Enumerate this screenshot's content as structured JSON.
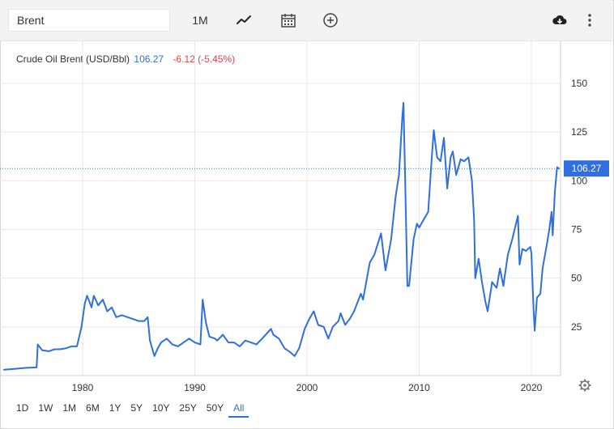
{
  "toolbar": {
    "search_value": "Brent",
    "interval_label": "1M",
    "icons": [
      "line-chart-icon",
      "calendar-icon",
      "add-circle-icon",
      "download-icon",
      "more-vertical-icon"
    ]
  },
  "legend": {
    "name": "Crude Oil Brent (USD/Bbl)",
    "price": "106.27",
    "change": "-6.12 (-5.45%)"
  },
  "colors": {
    "line": "#2f6fde",
    "badge": "#2f6fde",
    "change": "#e0454a",
    "grid": "#e8e8e8"
  },
  "ranges": [
    "1D",
    "1W",
    "1M",
    "6M",
    "1Y",
    "5Y",
    "10Y",
    "25Y",
    "50Y",
    "All"
  ],
  "active_range": "All",
  "chart_data": {
    "type": "line",
    "title": "",
    "xlabel": "",
    "ylabel": "",
    "xlim": [
      1973,
      2022.6
    ],
    "ylim": [
      0,
      150
    ],
    "x_ticks": [
      1980,
      1990,
      2000,
      2010,
      2020
    ],
    "y_ticks": [
      25,
      50,
      75,
      100,
      125,
      150
    ],
    "grid": true,
    "current_value": 106.27,
    "current_label": "106.27",
    "series": [
      {
        "name": "Crude Oil Brent (USD/Bbl)",
        "points": [
          [
            1973.0,
            3
          ],
          [
            1974.0,
            3.5
          ],
          [
            1975.0,
            4
          ],
          [
            1975.9,
            4.2
          ],
          [
            1976.0,
            16
          ],
          [
            1976.4,
            13
          ],
          [
            1977.0,
            12.5
          ],
          [
            1977.5,
            13.5
          ],
          [
            1978.0,
            13.5
          ],
          [
            1978.5,
            14
          ],
          [
            1979.0,
            15
          ],
          [
            1979.5,
            15
          ],
          [
            1979.9,
            25
          ],
          [
            1980.2,
            37
          ],
          [
            1980.4,
            41
          ],
          [
            1980.6,
            38
          ],
          [
            1980.8,
            35
          ],
          [
            1981.0,
            41
          ],
          [
            1981.4,
            36
          ],
          [
            1981.8,
            39
          ],
          [
            1982.2,
            33
          ],
          [
            1982.6,
            35
          ],
          [
            1983.0,
            30
          ],
          [
            1983.5,
            31
          ],
          [
            1984.0,
            30
          ],
          [
            1984.5,
            29
          ],
          [
            1985.0,
            28
          ],
          [
            1985.5,
            28
          ],
          [
            1985.8,
            30
          ],
          [
            1986.0,
            18
          ],
          [
            1986.4,
            10
          ],
          [
            1986.7,
            14
          ],
          [
            1987.0,
            17
          ],
          [
            1987.5,
            19
          ],
          [
            1988.0,
            16
          ],
          [
            1988.5,
            15
          ],
          [
            1989.0,
            17
          ],
          [
            1989.5,
            19
          ],
          [
            1990.0,
            17
          ],
          [
            1990.5,
            16
          ],
          [
            1990.7,
            39
          ],
          [
            1991.0,
            27
          ],
          [
            1991.3,
            20
          ],
          [
            1991.8,
            19
          ],
          [
            1992.0,
            18
          ],
          [
            1992.5,
            21
          ],
          [
            1993.0,
            17
          ],
          [
            1993.5,
            17
          ],
          [
            1994.0,
            15
          ],
          [
            1994.5,
            18
          ],
          [
            1995.0,
            17
          ],
          [
            1995.5,
            16
          ],
          [
            1996.0,
            19
          ],
          [
            1996.8,
            24
          ],
          [
            1997.0,
            21
          ],
          [
            1997.5,
            19
          ],
          [
            1998.0,
            14
          ],
          [
            1998.5,
            12
          ],
          [
            1998.9,
            10
          ],
          [
            1999.3,
            14
          ],
          [
            1999.8,
            24
          ],
          [
            2000.2,
            29
          ],
          [
            2000.6,
            33
          ],
          [
            2001.0,
            26
          ],
          [
            2001.5,
            25
          ],
          [
            2001.9,
            19
          ],
          [
            2002.3,
            25
          ],
          [
            2002.8,
            28
          ],
          [
            2003.0,
            32
          ],
          [
            2003.4,
            26
          ],
          [
            2003.8,
            29
          ],
          [
            2004.2,
            33
          ],
          [
            2004.8,
            42
          ],
          [
            2005.0,
            39
          ],
          [
            2005.6,
            58
          ],
          [
            2006.0,
            62
          ],
          [
            2006.6,
            73
          ],
          [
            2007.0,
            54
          ],
          [
            2007.5,
            70
          ],
          [
            2007.9,
            92
          ],
          [
            2008.2,
            103
          ],
          [
            2008.5,
            133
          ],
          [
            2008.6,
            140
          ],
          [
            2008.75,
            100
          ],
          [
            2008.95,
            46
          ],
          [
            2009.1,
            46
          ],
          [
            2009.5,
            70
          ],
          [
            2009.8,
            78
          ],
          [
            2010.0,
            76
          ],
          [
            2010.4,
            80
          ],
          [
            2010.8,
            84
          ],
          [
            2011.1,
            110
          ],
          [
            2011.3,
            126
          ],
          [
            2011.6,
            112
          ],
          [
            2011.9,
            110
          ],
          [
            2012.2,
            122
          ],
          [
            2012.5,
            96
          ],
          [
            2012.8,
            112
          ],
          [
            2013.0,
            115
          ],
          [
            2013.3,
            103
          ],
          [
            2013.7,
            111
          ],
          [
            2014.0,
            110
          ],
          [
            2014.4,
            112
          ],
          [
            2014.7,
            100
          ],
          [
            2014.9,
            80
          ],
          [
            2015.0,
            50
          ],
          [
            2015.3,
            60
          ],
          [
            2015.6,
            48
          ],
          [
            2015.9,
            38
          ],
          [
            2016.1,
            33
          ],
          [
            2016.5,
            48
          ],
          [
            2016.9,
            45
          ],
          [
            2017.2,
            55
          ],
          [
            2017.5,
            46
          ],
          [
            2017.9,
            62
          ],
          [
            2018.3,
            70
          ],
          [
            2018.8,
            82
          ],
          [
            2018.95,
            57
          ],
          [
            2019.2,
            65
          ],
          [
            2019.5,
            64
          ],
          [
            2019.9,
            66
          ],
          [
            2020.0,
            63
          ],
          [
            2020.2,
            33
          ],
          [
            2020.3,
            23
          ],
          [
            2020.5,
            40
          ],
          [
            2020.8,
            42
          ],
          [
            2021.0,
            55
          ],
          [
            2021.4,
            68
          ],
          [
            2021.6,
            75
          ],
          [
            2021.8,
            84
          ],
          [
            2021.9,
            72
          ],
          [
            2022.1,
            95
          ],
          [
            2022.3,
            107
          ],
          [
            2022.45,
            106.27
          ]
        ]
      }
    ]
  }
}
